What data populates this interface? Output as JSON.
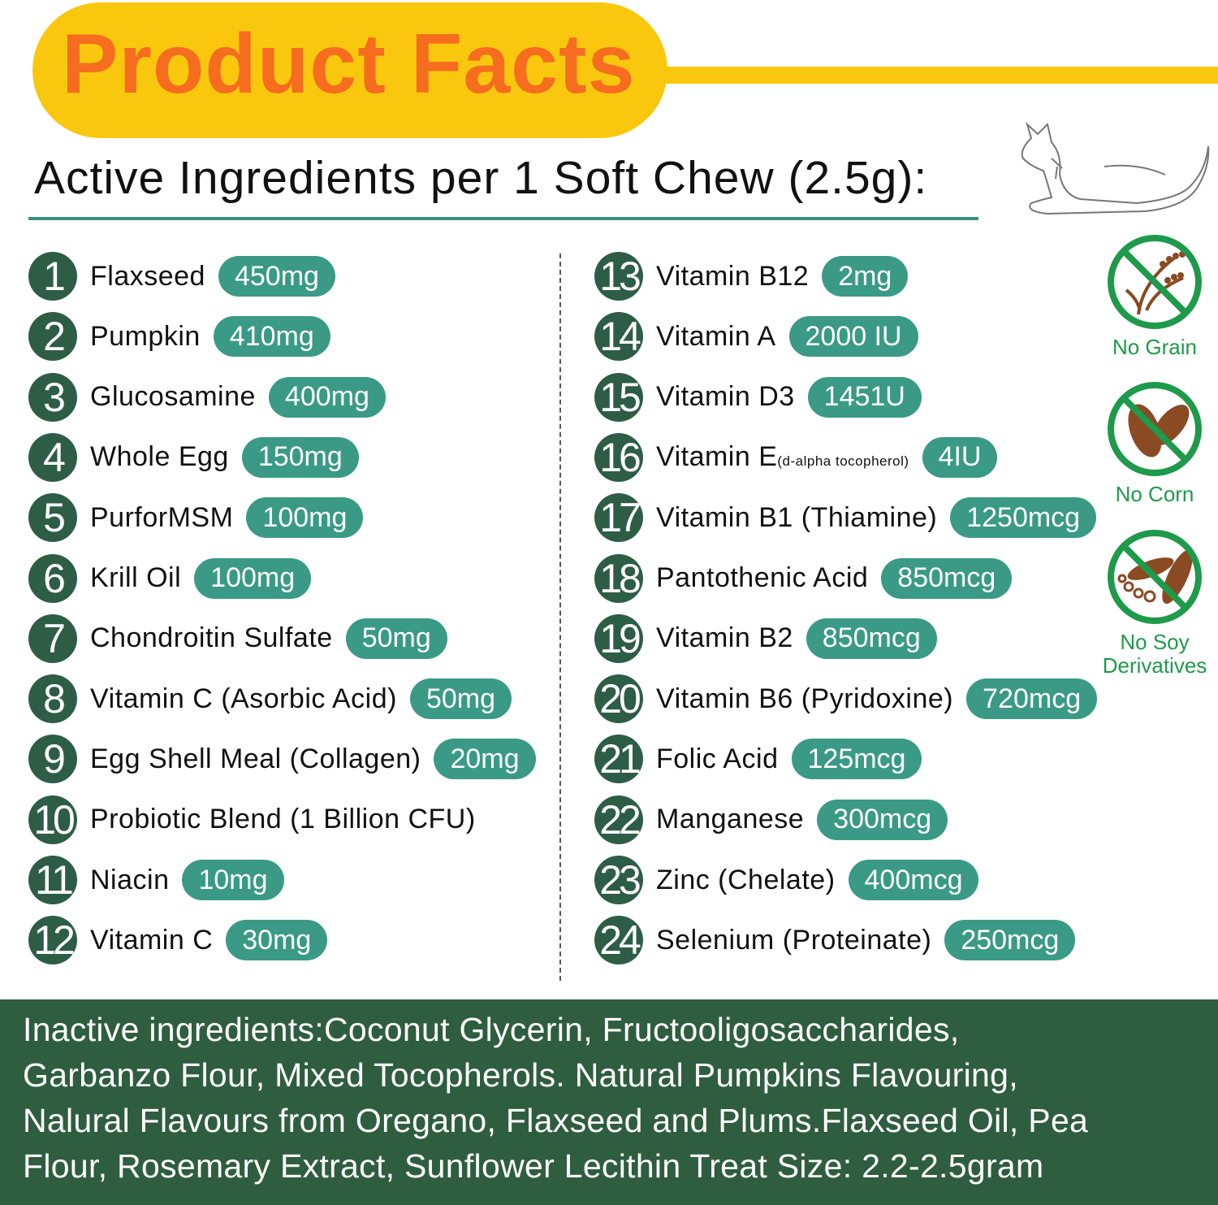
{
  "header": {
    "title": "Product Facts",
    "subtitle": "Active Ingredients per 1 Soft Chew (2.5g):"
  },
  "colors": {
    "title_bg": "#f9c80e",
    "title_text": "#f66d1f",
    "number_circle": "#2e5d45",
    "amount_pill": "#3a9a85",
    "footer_bg": "#2f5d3f",
    "badge_green": "#1e9a4a"
  },
  "ingredients": [
    {
      "n": "1",
      "name": "Flaxseed",
      "amount": "450mg"
    },
    {
      "n": "2",
      "name": "Pumpkin",
      "amount": "410mg"
    },
    {
      "n": "3",
      "name": "Glucosamine",
      "amount": "400mg"
    },
    {
      "n": "4",
      "name": "Whole Egg",
      "amount": "150mg"
    },
    {
      "n": "5",
      "name": "PurforMSM",
      "amount": "100mg"
    },
    {
      "n": "6",
      "name": "Krill Oil",
      "amount": "100mg"
    },
    {
      "n": "7",
      "name": "Chondroitin Sulfate",
      "amount": "50mg"
    },
    {
      "n": "8",
      "name": "Vitamin C (Asorbic Acid)",
      "amount": "50mg"
    },
    {
      "n": "9",
      "name": "Egg Shell Meal (Collagen)",
      "amount": "20mg"
    },
    {
      "n": "10",
      "name": "Probiotic Blend (1 Billion CFU)",
      "amount": ""
    },
    {
      "n": "11",
      "name": "Niacin",
      "amount": "10mg"
    },
    {
      "n": "12",
      "name": "Vitamin C",
      "amount": "30mg"
    },
    {
      "n": "13",
      "name": "Vitamin B12",
      "amount": "2mg"
    },
    {
      "n": "14",
      "name": "Vitamin A",
      "amount": "2000 IU"
    },
    {
      "n": "15",
      "name": "Vitamin D3",
      "amount": "1451U"
    },
    {
      "n": "16",
      "name": "Vitamin E",
      "note": "(d-alpha tocopherol)",
      "amount": "4IU"
    },
    {
      "n": "17",
      "name": "Vitamin B1 (Thiamine)",
      "amount": "1250mcg"
    },
    {
      "n": "18",
      "name": "Pantothenic Acid",
      "amount": "850mcg"
    },
    {
      "n": "19",
      "name": "Vitamin B2",
      "amount": "850mcg"
    },
    {
      "n": "20",
      "name": "Vitamin B6 (Pyridoxine)",
      "amount": "720mcg"
    },
    {
      "n": "21",
      "name": "Folic Acid",
      "amount": "125mcg"
    },
    {
      "n": "22",
      "name": "Manganese",
      "amount": "300mcg"
    },
    {
      "n": "23",
      "name": "Zinc (Chelate)",
      "amount": "400mcg"
    },
    {
      "n": "24",
      "name": "Selenium (Proteinate)",
      "amount": "250mcg"
    }
  ],
  "badges": [
    {
      "label": "No Grain",
      "icon": "no-grain-icon"
    },
    {
      "label": "No Corn",
      "icon": "no-corn-icon"
    },
    {
      "label": "No Soy Derivatives",
      "icon": "no-soy-icon"
    }
  ],
  "inactive": {
    "lines": [
      "Inactive ingredients:Coconut Glycerin, Fructooligosaccharides,",
      "Garbanzo Flour, Mixed Tocopherols. Natural Pumpkins Flavouring,",
      "Nalural Flavours from Oregano, Flaxseed and Plums.Flaxseed Oil, Pea",
      "Flour, Rosemary Extract, Sunflower Lecithin Treat Size: 2.2-2.5gram"
    ]
  }
}
